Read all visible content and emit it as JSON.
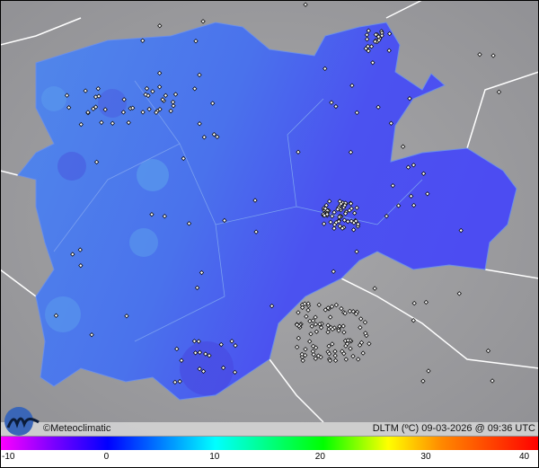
{
  "map": {
    "variable": "DLTM (ºC)",
    "date": "09-03-2026",
    "time": "09:36 UTC",
    "legend_title": "DLTM (ºC) 09-03-2026 @ 09:36 UTC",
    "copyright": "©Meteoclimatic",
    "logo_icon": "meteoclimatic-logo-icon",
    "colors": {
      "background": "#9a9a9a",
      "region_light": "#4f86ea",
      "region_dark": "#4b4ff2",
      "borders": "#ffffff"
    }
  },
  "colorbar": {
    "range": [
      -10,
      40
    ],
    "ticks": [
      "-10",
      "0",
      "10",
      "20",
      "30",
      "40"
    ],
    "stops": [
      "#ff00ff",
      "#7a00ff",
      "#0000ff",
      "#00ffff",
      "#00ff00",
      "#ffff00",
      "#ff8800",
      "#ff0000"
    ]
  }
}
